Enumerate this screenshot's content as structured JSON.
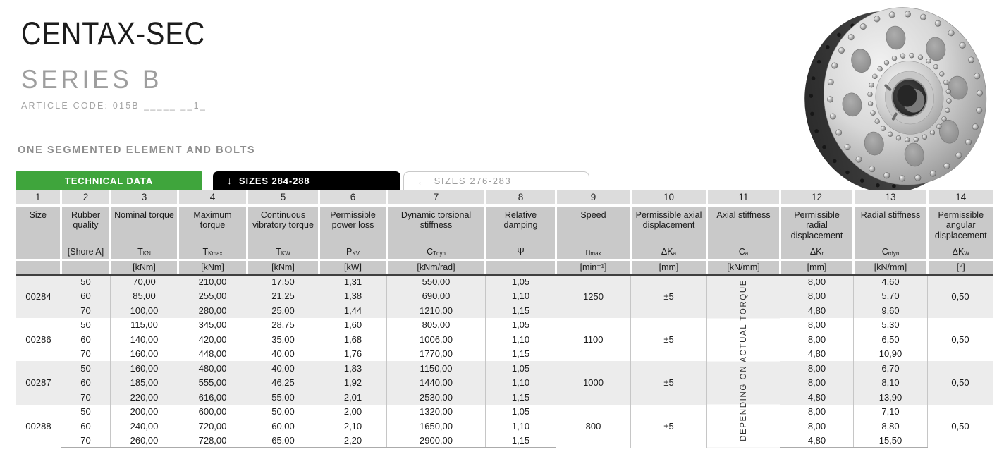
{
  "header": {
    "title": "CENTAX-SEC",
    "subtitle": "SERIES B",
    "article_code": "ARTICLE CODE: 015B-_____-__1_",
    "section_heading": "ONE SEGMENTED ELEMENT AND BOLTS"
  },
  "product_image": {
    "description": "CENTAX-SEC coupling - steel flange with bolt circles and segmented element"
  },
  "tabs": [
    {
      "label": "TECHNICAL DATA",
      "icon": "",
      "active": true,
      "color": "#3fa53c"
    },
    {
      "label": "SIZES 284-288",
      "icon": "↓",
      "active": false,
      "color": "#000000"
    },
    {
      "label": "SIZES 276-283",
      "icon": "←",
      "active": false,
      "color": "#ffffff"
    }
  ],
  "colors": {
    "accent_green": "#3fa53c",
    "tab_black": "#000000",
    "header_gray": "#c9c9c9",
    "number_row_gray": "#dcdcdc",
    "row_stripe_gray": "#ececec",
    "grid_line": "#c6c6c6",
    "header_divider": "#3f3f3f"
  },
  "table": {
    "column_numbers": [
      "1",
      "2",
      "3",
      "4",
      "5",
      "6",
      "7",
      "8",
      "9",
      "10",
      "11",
      "12",
      "13",
      "14"
    ],
    "columns": [
      {
        "num": "1",
        "title": "Size",
        "sym": "",
        "sub": "",
        "unit": ""
      },
      {
        "num": "2",
        "title": "Rubber quality",
        "sym": "[Shore A]",
        "sub": "",
        "unit": ""
      },
      {
        "num": "3",
        "title": "Nominal torque",
        "sym": "T",
        "sub": "KN",
        "unit": "[kNm]"
      },
      {
        "num": "4",
        "title": "Maximum torque",
        "sym": "T",
        "sub": "Kmax",
        "unit": "[kNm]"
      },
      {
        "num": "5",
        "title": "Continuous vibratory torque",
        "sym": "T",
        "sub": "KW",
        "unit": "[kNm]"
      },
      {
        "num": "6",
        "title": "Permissible power loss",
        "sym": "P",
        "sub": "KV",
        "unit": "[kW]"
      },
      {
        "num": "7",
        "title": "Dynamic torsional stiffness",
        "sym": "C",
        "sub": "Tdyn",
        "unit": "[kNm/rad]"
      },
      {
        "num": "8",
        "title": "Relative damping",
        "sym": "Ψ",
        "sub": "",
        "unit": ""
      },
      {
        "num": "9",
        "title": "Speed",
        "sym": "n",
        "sub": "max",
        "unit": "[min⁻¹]"
      },
      {
        "num": "10",
        "title": "Permissible axial displacement",
        "sym": "ΔK",
        "sub": "a",
        "unit": "[mm]"
      },
      {
        "num": "11",
        "title": "Axial stiffness",
        "sym": "C",
        "sub": "a",
        "unit": "[kN/mm]"
      },
      {
        "num": "12",
        "title": "Permissible radial displacement",
        "sym": "ΔK",
        "sub": "r",
        "unit": "[mm]"
      },
      {
        "num": "13",
        "title": "Radial stiffness",
        "sym": "C",
        "sub": "rdyn",
        "unit": "[kN/mm]"
      },
      {
        "num": "14",
        "title": "Permissible angular displacement",
        "sym": "ΔK",
        "sub": "W",
        "unit": "[°]"
      }
    ],
    "vertical_note": "DEPENDING ON ACTUAL TORQUE",
    "groups": [
      {
        "size": "00284",
        "speed": "1250",
        "axial_displacement": "±5",
        "angular_displacement": "0,50",
        "rows": [
          {
            "shore": "50",
            "tkn": "70,00",
            "tkmax": "210,00",
            "tkw": "17,50",
            "pkv": "1,31",
            "ctdyn": "550,00",
            "psi": "1,05",
            "dkr": "8,00",
            "crdyn": "4,60"
          },
          {
            "shore": "60",
            "tkn": "85,00",
            "tkmax": "255,00",
            "tkw": "21,25",
            "pkv": "1,38",
            "ctdyn": "690,00",
            "psi": "1,10",
            "dkr": "8,00",
            "crdyn": "5,70"
          },
          {
            "shore": "70",
            "tkn": "100,00",
            "tkmax": "280,00",
            "tkw": "25,00",
            "pkv": "1,44",
            "ctdyn": "1210,00",
            "psi": "1,15",
            "dkr": "4,80",
            "crdyn": "9,60"
          }
        ]
      },
      {
        "size": "00286",
        "speed": "1100",
        "axial_displacement": "±5",
        "angular_displacement": "0,50",
        "rows": [
          {
            "shore": "50",
            "tkn": "115,00",
            "tkmax": "345,00",
            "tkw": "28,75",
            "pkv": "1,60",
            "ctdyn": "805,00",
            "psi": "1,05",
            "dkr": "8,00",
            "crdyn": "5,30"
          },
          {
            "shore": "60",
            "tkn": "140,00",
            "tkmax": "420,00",
            "tkw": "35,00",
            "pkv": "1,68",
            "ctdyn": "1006,00",
            "psi": "1,10",
            "dkr": "8,00",
            "crdyn": "6,50"
          },
          {
            "shore": "70",
            "tkn": "160,00",
            "tkmax": "448,00",
            "tkw": "40,00",
            "pkv": "1,76",
            "ctdyn": "1770,00",
            "psi": "1,15",
            "dkr": "4,80",
            "crdyn": "10,90"
          }
        ]
      },
      {
        "size": "00287",
        "speed": "1000",
        "axial_displacement": "±5",
        "angular_displacement": "0,50",
        "rows": [
          {
            "shore": "50",
            "tkn": "160,00",
            "tkmax": "480,00",
            "tkw": "40,00",
            "pkv": "1,83",
            "ctdyn": "1150,00",
            "psi": "1,05",
            "dkr": "8,00",
            "crdyn": "6,70"
          },
          {
            "shore": "60",
            "tkn": "185,00",
            "tkmax": "555,00",
            "tkw": "46,25",
            "pkv": "1,92",
            "ctdyn": "1440,00",
            "psi": "1,10",
            "dkr": "8,00",
            "crdyn": "8,10"
          },
          {
            "shore": "70",
            "tkn": "220,00",
            "tkmax": "616,00",
            "tkw": "55,00",
            "pkv": "2,01",
            "ctdyn": "2530,00",
            "psi": "1,15",
            "dkr": "4,80",
            "crdyn": "13,90"
          }
        ]
      },
      {
        "size": "00288",
        "speed": "800",
        "axial_displacement": "±5",
        "angular_displacement": "0,50",
        "rows": [
          {
            "shore": "50",
            "tkn": "200,00",
            "tkmax": "600,00",
            "tkw": "50,00",
            "pkv": "2,00",
            "ctdyn": "1320,00",
            "psi": "1,05",
            "dkr": "8,00",
            "crdyn": "7,10"
          },
          {
            "shore": "60",
            "tkn": "240,00",
            "tkmax": "720,00",
            "tkw": "60,00",
            "pkv": "2,10",
            "ctdyn": "1650,00",
            "psi": "1,10",
            "dkr": "8,00",
            "crdyn": "8,80"
          },
          {
            "shore": "70",
            "tkn": "260,00",
            "tkmax": "728,00",
            "tkw": "65,00",
            "pkv": "2,20",
            "ctdyn": "2900,00",
            "psi": "1,15",
            "dkr": "4,80",
            "crdyn": "15,50"
          }
        ]
      }
    ]
  }
}
